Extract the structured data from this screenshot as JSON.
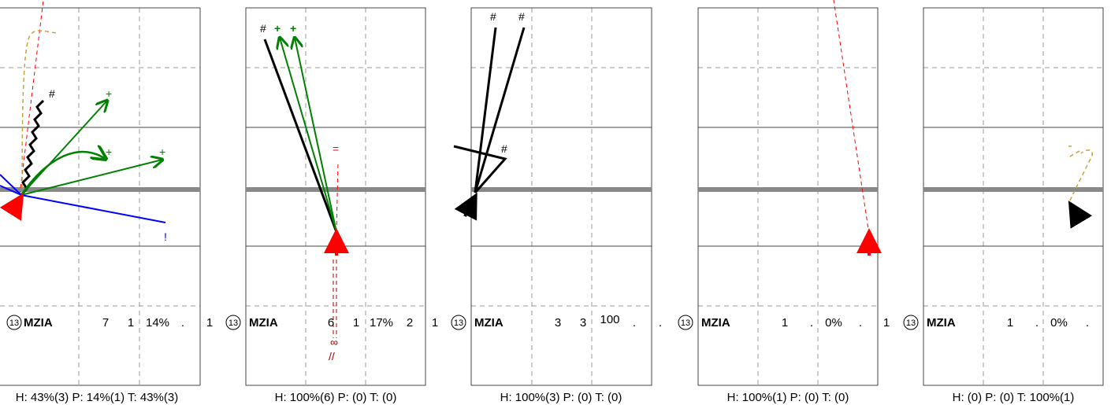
{
  "panels": [
    {
      "row": {
        "badge": "13",
        "name": "MZIA",
        "c1": "7",
        "c2": "1",
        "c3": "14%",
        "c4": ".",
        "c5": "1"
      },
      "footer": "H: 43%(3)  P: 14%(1)  T: 43%(3)",
      "markers": [
        {
          "text": "#",
          "color": "#000000"
        },
        {
          "text": "+",
          "color": "#008000"
        },
        {
          "text": "+",
          "color": "#008000"
        },
        {
          "text": "+",
          "color": "#008000"
        },
        {
          "text": "!",
          "color": "#0000ff"
        }
      ]
    },
    {
      "row": {
        "badge": "13",
        "name": "MZIA",
        "c1": "6",
        "c2": "1",
        "c3": "17%",
        "c4": "2",
        "c5": "1"
      },
      "footer": "H: 100%(6)  P: (0)  T: (0)",
      "markers": [
        {
          "text": "#",
          "color": "#000000"
        },
        {
          "text": "+",
          "color": "#008000"
        },
        {
          "text": "+",
          "color": "#008000"
        },
        {
          "text": "=",
          "color": "#ff0000"
        },
        {
          "text": "∞",
          "color": "#aa0000"
        },
        {
          "text": "//",
          "color": "#aa0000"
        }
      ]
    },
    {
      "row": {
        "badge": "13",
        "name": "MZIA",
        "c1": "3",
        "c2": "3",
        "c3": "100",
        "c4": ".",
        "c5": "."
      },
      "footer": "H: 100%(3)  P: (0)  T: (0)",
      "markers": [
        {
          "text": "#",
          "color": "#000000"
        },
        {
          "text": "#",
          "color": "#000000"
        },
        {
          "text": "#",
          "color": "#000000"
        }
      ]
    },
    {
      "row": {
        "badge": "13",
        "name": "MZIA",
        "c1": "1",
        "c2": ".",
        "c3": "0%",
        "c4": ".",
        "c5": "1"
      },
      "footer": "H: 100%(1)  P: (0)  T: (0)",
      "markers": []
    },
    {
      "row": {
        "badge": "13",
        "name": "MZIA",
        "c1": "1",
        "c2": ".",
        "c3": "0%",
        "c4": ".",
        "c5": ""
      },
      "footer": "H: (0)  P: (0)  T: 100%(1)",
      "markers": []
    }
  ],
  "colors": {
    "grid_solid": "#444444",
    "grid_dashed": "#999999",
    "midline": "#888888",
    "black": "#000000",
    "green": "#008000",
    "blue": "#0000ff",
    "red": "#ff0000",
    "gold": "#c8a040",
    "darkred": "#aa0000"
  }
}
